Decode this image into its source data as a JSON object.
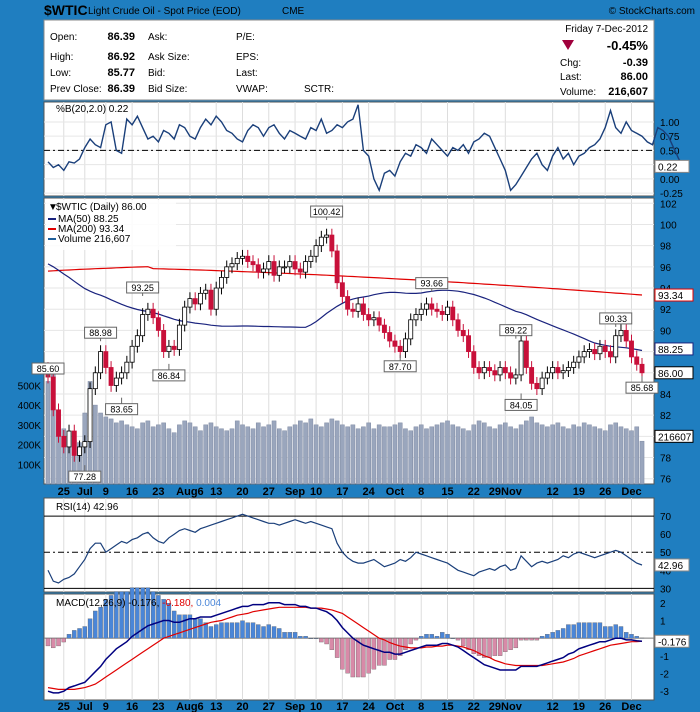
{
  "header": {
    "symbol": "$WTIC",
    "name": "Light Crude Oil - Spot Price (EOD)",
    "exchange": "CME",
    "copyright": "© StockCharts.com",
    "date": "Friday  7-Dec-2012",
    "pct_change": "-0.45%",
    "colors": {
      "down": "#a0003c"
    }
  },
  "quote": {
    "open": {
      "label": "Open:",
      "value": "86.39"
    },
    "high": {
      "label": "High:",
      "value": "86.92"
    },
    "low": {
      "label": "Low:",
      "value": "85.77"
    },
    "prev_close": {
      "label": "Prev Close:",
      "value": "86.39"
    },
    "ask": {
      "label": "Ask:"
    },
    "ask_size": {
      "label": "Ask Size:"
    },
    "bid": {
      "label": "Bid:"
    },
    "bid_size": {
      "label": "Bid Size:"
    },
    "pe": {
      "label": "P/E:"
    },
    "eps": {
      "label": "EPS:"
    },
    "last_blank": {
      "label": "Last:"
    },
    "vwap": {
      "label": "VWAP:"
    },
    "sctr": {
      "label": "SCTR:"
    },
    "chg": {
      "label": "Chg:",
      "value": "-0.39"
    },
    "last": {
      "label": "Last:",
      "value": "86.00"
    },
    "volume": {
      "label": "Volume:",
      "value": "216,607"
    }
  },
  "chart_data": [
    {
      "type": "line",
      "panel": "%B",
      "title": "%B(20,2.0) 0.22",
      "ylim": [
        -0.3,
        1.35
      ],
      "ticks": [
        "-0.25",
        "0.00",
        "0.25",
        "0.50",
        "0.75",
        "1.00"
      ],
      "tick_values": [
        -0.25,
        0,
        0.25,
        0.5,
        0.75,
        1.0
      ],
      "reference_line": 0.5,
      "last_label": "0.22",
      "series": [
        {
          "values": [
            0.3,
            0.2,
            0.25,
            0.15,
            0.3,
            0.28,
            0.35,
            0.55,
            0.7,
            0.6,
            0.55,
            0.95,
            1.0,
            0.5,
            0.45,
            1.05,
            0.95,
            1.1,
            0.9,
            0.7,
            0.75,
            0.65,
            0.85,
            0.8,
            0.7,
            0.95,
            0.9,
            0.75,
            0.7,
            0.9,
            1.05,
            0.95,
            1.1,
            1.0,
            0.85,
            0.8,
            0.7,
            0.65,
            0.85,
            0.95,
            0.9,
            0.75,
            0.9,
            0.95,
            0.8,
            0.7,
            0.85,
            0.8,
            0.75,
            0.7,
            0.9,
            0.85,
            1.05,
            0.8,
            0.85,
            0.95,
            0.9,
            1.0,
            1.05,
            1.3,
            0.5,
            0.4,
            0.0,
            -0.2,
            0.1,
            0.15,
            0.05,
            0.3,
            0.45,
            0.4,
            0.6,
            0.55,
            0.45,
            0.7,
            0.6,
            0.5,
            0.4,
            0.55,
            0.5,
            0.6,
            0.45,
            0.65,
            0.7,
            0.8,
            0.75,
            0.55,
            0.35,
            0.15,
            -0.2,
            -0.1,
            0.05,
            0.2,
            0.35,
            0.45,
            0.25,
            0.15,
            0.4,
            0.55,
            0.35,
            0.45,
            0.25,
            0.4,
            0.45,
            0.55,
            0.6,
            0.7,
            0.9,
            1.2,
            0.9,
            0.8,
            1.0,
            0.85,
            0.8,
            0.75,
            0.65,
            0.6,
            0.9,
            0.85,
            0.75,
            0.55,
            0.35,
            0.22
          ]
        }
      ]
    },
    {
      "type": "candlestick",
      "panel": "price",
      "title": "$WTIC (Daily) 86.00",
      "legend": [
        {
          "name": "MA(50) 88.25",
          "color": "#1a237e"
        },
        {
          "name": "MA(200) 93.34",
          "color": "#e00000"
        },
        {
          "name": "Volume 216,607",
          "color": "#1f5f9a"
        }
      ],
      "ylim": [
        75.5,
        102.5
      ],
      "price_ticks": [
        76,
        78,
        80,
        82,
        84,
        86,
        88,
        90,
        92,
        94,
        96,
        98,
        100,
        102
      ],
      "volume_ticks": [
        "100K",
        "200K",
        "300K",
        "400K",
        "500K"
      ],
      "volume_tick_values": [
        100,
        200,
        300,
        400,
        500
      ],
      "volume_max": 1450,
      "x_labels": [
        {
          "i": 3,
          "label": "25"
        },
        {
          "i": 7,
          "label": "Jul"
        },
        {
          "i": 11,
          "label": "9"
        },
        {
          "i": 16,
          "label": "16"
        },
        {
          "i": 21,
          "label": "23"
        },
        {
          "i": 27,
          "label": "Aug6"
        },
        {
          "i": 32,
          "label": "13"
        },
        {
          "i": 37,
          "label": "20"
        },
        {
          "i": 42,
          "label": "27"
        },
        {
          "i": 47,
          "label": "Sep"
        },
        {
          "i": 51,
          "label": "10"
        },
        {
          "i": 56,
          "label": "17"
        },
        {
          "i": 61,
          "label": "24"
        },
        {
          "i": 66,
          "label": "Oct"
        },
        {
          "i": 71,
          "label": "8"
        },
        {
          "i": 76,
          "label": "15"
        },
        {
          "i": 81,
          "label": "22"
        },
        {
          "i": 87,
          "label": "29Nov"
        },
        {
          "i": 96,
          "label": "12"
        },
        {
          "i": 101,
          "label": "19"
        },
        {
          "i": 106,
          "label": "26"
        },
        {
          "i": 111,
          "label": "Dec"
        }
      ],
      "annotations": [
        {
          "i": 0,
          "value": 85.6,
          "label": "85.60",
          "pos": "above"
        },
        {
          "i": 7,
          "value": 77.28,
          "label": "77.28",
          "pos": "below"
        },
        {
          "i": 10,
          "value": 88.98,
          "label": "88.98",
          "pos": "above"
        },
        {
          "i": 14,
          "value": 83.65,
          "label": "83.65",
          "pos": "below"
        },
        {
          "i": 18,
          "value": 93.25,
          "label": "93.25",
          "pos": "above"
        },
        {
          "i": 23,
          "value": 86.84,
          "label": "86.84",
          "pos": "below"
        },
        {
          "i": 53,
          "value": 100.42,
          "label": "100.42",
          "pos": "above"
        },
        {
          "i": 67,
          "value": 87.7,
          "label": "87.70",
          "pos": "below"
        },
        {
          "i": 73,
          "value": 93.66,
          "label": "93.66",
          "pos": "above"
        },
        {
          "i": 89,
          "value": 89.22,
          "label": "89.22",
          "pos": "above"
        },
        {
          "i": 90,
          "value": 84.05,
          "label": "84.05",
          "pos": "below"
        },
        {
          "i": 108,
          "value": 90.33,
          "label": "90.33",
          "pos": "above"
        },
        {
          "i": 113,
          "value": 85.68,
          "label": "85.68",
          "pos": "below"
        }
      ],
      "right_labels": [
        {
          "value": 93.34,
          "label": "93.34",
          "color": "#e00000"
        },
        {
          "value": 88.25,
          "label": "88.25",
          "color": "#1a237e"
        },
        {
          "value": 86.0,
          "label": "86.00",
          "color": "#000000"
        },
        {
          "value": 80.0,
          "label": "216607",
          "color": "#000000"
        }
      ],
      "closes": [
        85.6,
        82.5,
        80.0,
        79.0,
        80.5,
        78.2,
        79.0,
        79.5,
        84.5,
        86.0,
        88.0,
        86.5,
        84.8,
        85.5,
        86.0,
        87.0,
        88.5,
        89.5,
        91.5,
        92.0,
        91.2,
        90.0,
        88.0,
        88.5,
        88.2,
        90.5,
        92.2,
        93.0,
        92.5,
        93.5,
        93.8,
        92.0,
        94.0,
        95.0,
        96.0,
        96.3,
        96.8,
        97.0,
        96.5,
        96.2,
        95.5,
        95.8,
        96.5,
        95.2,
        96.0,
        96.0,
        96.5,
        95.8,
        95.5,
        96.5,
        97.0,
        98.0,
        98.8,
        99.0,
        97.5,
        94.5,
        93.2,
        92.0,
        91.8,
        92.5,
        91.5,
        91.0,
        91.2,
        90.5,
        89.8,
        89.0,
        88.5,
        88.0,
        89.2,
        91.0,
        91.5,
        92.0,
        92.5,
        92.0,
        91.8,
        91.5,
        92.2,
        91.0,
        90.0,
        89.5,
        88.0,
        86.5,
        86.0,
        86.5,
        86.2,
        85.8,
        86.5,
        86.0,
        85.5,
        85.8,
        89.0,
        86.5,
        85.0,
        84.5,
        85.5,
        86.0,
        86.5,
        86.0,
        86.2,
        86.5,
        87.0,
        87.5,
        88.0,
        88.2,
        87.8,
        88.5,
        88.0,
        87.5,
        89.5,
        90.0,
        89.0,
        87.5,
        86.8,
        86.0
      ],
      "volumes": [
        520,
        600,
        320,
        280,
        250,
        220,
        210,
        360,
        520,
        400,
        360,
        340,
        330,
        310,
        320,
        300,
        290,
        280,
        310,
        320,
        290,
        300,
        310,
        280,
        260,
        300,
        320,
        310,
        290,
        270,
        300,
        310,
        290,
        280,
        270,
        280,
        320,
        300,
        290,
        280,
        310,
        290,
        300,
        320,
        280,
        270,
        290,
        300,
        320,
        310,
        330,
        300,
        290,
        310,
        330,
        320,
        300,
        290,
        300,
        280,
        290,
        310,
        280,
        300,
        290,
        290,
        300,
        310,
        280,
        270,
        290,
        300,
        280,
        290,
        300,
        310,
        320,
        300,
        290,
        280,
        270,
        300,
        320,
        310,
        290,
        280,
        300,
        310,
        290,
        280,
        300,
        320,
        340,
        310,
        300,
        290,
        300,
        310,
        290,
        280,
        300,
        290,
        310,
        300,
        290,
        280,
        270,
        300,
        310,
        290,
        280,
        270,
        290,
        217
      ]
    },
    {
      "type": "line",
      "panel": "RSI",
      "title": "RSI(14) 42.96",
      "ylim": [
        28,
        80
      ],
      "ticks": [
        "30",
        "40",
        "50",
        "60",
        "70"
      ],
      "tick_values": [
        30,
        40,
        50,
        60,
        70
      ],
      "band_lines": [
        70,
        30
      ],
      "reference_line": 50,
      "last_label": "42.96",
      "series": [
        {
          "values": [
            40,
            34,
            33,
            35,
            36,
            38,
            42,
            46,
            52,
            55,
            55,
            50,
            52,
            54,
            56,
            55,
            57,
            58,
            60,
            61,
            58,
            56,
            55,
            58,
            60,
            62,
            63,
            62,
            61,
            63,
            64,
            65,
            66,
            67,
            68,
            69,
            70,
            71,
            70,
            69,
            68,
            67,
            66,
            66,
            65,
            66,
            67,
            68,
            67,
            66,
            67,
            66,
            65,
            64,
            63,
            55,
            50,
            47,
            45,
            44,
            44,
            45,
            46,
            44,
            42,
            43,
            44,
            46,
            45,
            47,
            50,
            49,
            48,
            47,
            46,
            45,
            44,
            42,
            40,
            39,
            38,
            37,
            39,
            40,
            41,
            40,
            42,
            43,
            40,
            41,
            48,
            45,
            42,
            44,
            45,
            44,
            45,
            46,
            48,
            47,
            49,
            50,
            49,
            48,
            47,
            48,
            49,
            50,
            51,
            50,
            48,
            46,
            44,
            42.96
          ]
        }
      ]
    },
    {
      "type": "line",
      "panel": "MACD",
      "title": "MACD(12,26,9) -0.176, -0.180, 0.004",
      "title_parts": [
        "MACD(12,26,9) -0.176, ",
        "-0.180, ",
        "0.004"
      ],
      "ylim": [
        -3.5,
        2.5
      ],
      "ticks": [
        "-3",
        "-2",
        "-1",
        "0",
        "1",
        "2"
      ],
      "tick_values": [
        -3,
        -2,
        -1,
        0,
        1,
        2
      ],
      "last_label": "-0.176",
      "series": [
        {
          "name": "MACD",
          "color": "#000080",
          "values": [
            -3.0,
            -3.1,
            -3.1,
            -3.0,
            -2.8,
            -2.7,
            -2.6,
            -2.5,
            -2.2,
            -1.9,
            -1.6,
            -1.2,
            -0.9,
            -0.6,
            -0.4,
            -0.2,
            0.1,
            0.3,
            0.5,
            0.7,
            0.8,
            0.9,
            1.0,
            1.0,
            0.9,
            0.9,
            1.0,
            1.1,
            1.1,
            1.2,
            1.2,
            1.2,
            1.3,
            1.4,
            1.5,
            1.6,
            1.7,
            1.8,
            1.8,
            1.9,
            1.9,
            1.9,
            2.0,
            2.0,
            2.0,
            1.9,
            1.9,
            1.9,
            1.8,
            1.8,
            1.7,
            1.7,
            1.6,
            1.5,
            1.3,
            1.0,
            0.6,
            0.3,
            0.0,
            -0.2,
            -0.4,
            -0.5,
            -0.6,
            -0.7,
            -0.8,
            -0.8,
            -0.9,
            -0.9,
            -0.8,
            -0.7,
            -0.6,
            -0.5,
            -0.4,
            -0.4,
            -0.4,
            -0.3,
            -0.3,
            -0.4,
            -0.5,
            -0.7,
            -0.9,
            -1.1,
            -1.3,
            -1.5,
            -1.6,
            -1.7,
            -1.8,
            -1.8,
            -1.8,
            -1.8,
            -1.6,
            -1.6,
            -1.6,
            -1.6,
            -1.5,
            -1.4,
            -1.3,
            -1.2,
            -1.1,
            -0.9,
            -0.8,
            -0.6,
            -0.5,
            -0.4,
            -0.3,
            -0.2,
            -0.2,
            -0.1,
            0.0,
            0.0,
            -0.1,
            -0.1,
            -0.15,
            -0.176
          ]
        },
        {
          "name": "Signal",
          "color": "#e00000",
          "values": [
            -2.8,
            -2.85,
            -2.9,
            -2.9,
            -2.9,
            -2.9,
            -2.85,
            -2.8,
            -2.7,
            -2.6,
            -2.4,
            -2.2,
            -2.0,
            -1.8,
            -1.6,
            -1.4,
            -1.2,
            -1.0,
            -0.8,
            -0.6,
            -0.4,
            -0.2,
            0.0,
            0.1,
            0.2,
            0.3,
            0.4,
            0.5,
            0.6,
            0.7,
            0.8,
            0.9,
            0.95,
            1.0,
            1.1,
            1.2,
            1.3,
            1.35,
            1.4,
            1.5,
            1.55,
            1.6,
            1.65,
            1.7,
            1.75,
            1.75,
            1.75,
            1.75,
            1.75,
            1.75,
            1.7,
            1.7,
            1.7,
            1.65,
            1.6,
            1.5,
            1.4,
            1.2,
            1.0,
            0.8,
            0.6,
            0.4,
            0.2,
            0.0,
            -0.1,
            -0.25,
            -0.35,
            -0.45,
            -0.5,
            -0.55,
            -0.55,
            -0.55,
            -0.5,
            -0.5,
            -0.45,
            -0.45,
            -0.4,
            -0.4,
            -0.45,
            -0.5,
            -0.6,
            -0.7,
            -0.85,
            -1.0,
            -1.1,
            -1.25,
            -1.35,
            -1.45,
            -1.5,
            -1.55,
            -1.55,
            -1.55,
            -1.55,
            -1.55,
            -1.55,
            -1.5,
            -1.45,
            -1.4,
            -1.35,
            -1.25,
            -1.15,
            -1.0,
            -0.9,
            -0.8,
            -0.7,
            -0.6,
            -0.5,
            -0.4,
            -0.35,
            -0.3,
            -0.25,
            -0.2,
            -0.2,
            -0.18
          ]
        }
      ],
      "colors": {
        "histogram_pos": "#4a86d8",
        "histogram_neg": "#d88aa8",
        "tick_label_red": "#e00000",
        "tick_label_blue": "#4a86d8"
      }
    }
  ]
}
